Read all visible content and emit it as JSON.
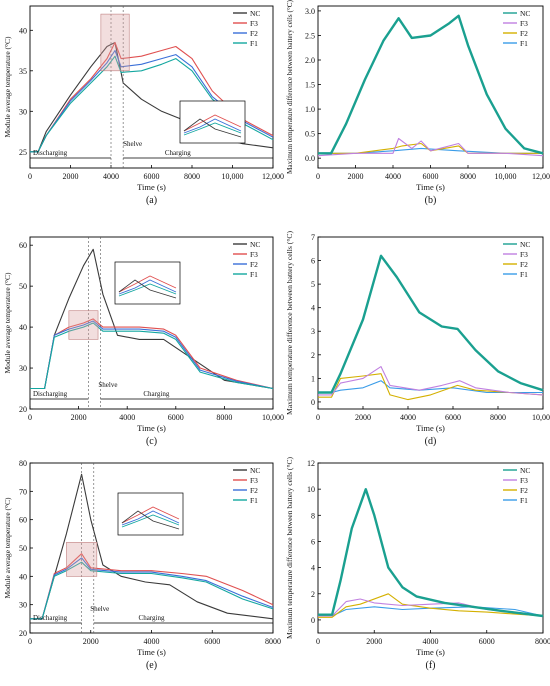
{
  "colors": {
    "NC": "#3a3a3a",
    "F3": "#e05050",
    "F2": "#3a6fd8",
    "F1": "#14a7a0"
  },
  "colors_right": {
    "NC": "#1aa090",
    "F3": "#c080e0",
    "F2": "#d4b000",
    "F1": "#3a9ce8"
  },
  "chart_data": [
    {
      "id": "a",
      "type": "line",
      "caption": "(a)",
      "xlabel": "Time (s)",
      "ylabel": "Module average temperature  (°C)",
      "xlim": [
        0,
        12000
      ],
      "ylim": [
        23,
        43
      ],
      "xticks": [
        0,
        2000,
        4000,
        6000,
        8000,
        10000,
        12000
      ],
      "xticklabels": [
        "0",
        "2000",
        "4000",
        "6000",
        "8000",
        "10,000",
        "12,000"
      ],
      "yticks": [
        25,
        30,
        35,
        40
      ],
      "annotations": [
        "Discharging",
        "Shelve",
        "Charging"
      ],
      "legend": [
        "NC",
        "F3",
        "F2",
        "F1"
      ],
      "series": [
        {
          "name": "NC",
          "x": [
            0,
            400,
            800,
            2000,
            3000,
            3800,
            4200,
            4600,
            5500,
            6500,
            7500,
            9000,
            10500,
            12000
          ],
          "y": [
            25,
            25,
            27.5,
            32,
            35.5,
            38,
            38.5,
            33.5,
            31.5,
            30,
            29,
            27,
            26,
            25.5
          ]
        },
        {
          "name": "F3",
          "x": [
            0,
            400,
            800,
            2000,
            3000,
            3800,
            4200,
            4500,
            5500,
            6500,
            7200,
            8000,
            9000,
            10500,
            12000
          ],
          "y": [
            25,
            25,
            27,
            31.5,
            34,
            36.5,
            38.5,
            36.5,
            36.8,
            37.5,
            38,
            36.5,
            32.5,
            29,
            27
          ]
        },
        {
          "name": "F2",
          "x": [
            0,
            400,
            800,
            2000,
            3000,
            3800,
            4200,
            4500,
            5500,
            6500,
            7200,
            8000,
            9000,
            10500,
            12000
          ],
          "y": [
            25,
            25,
            27,
            31.3,
            33.8,
            36,
            37.5,
            35.5,
            35.8,
            36.5,
            37,
            35.5,
            31.8,
            28.8,
            26.8
          ]
        },
        {
          "name": "F1",
          "x": [
            0,
            400,
            800,
            2000,
            3000,
            3800,
            4200,
            4500,
            5500,
            6500,
            7200,
            8000,
            9000,
            10500,
            12000
          ],
          "y": [
            25,
            25,
            27,
            31,
            33.5,
            35.5,
            36.8,
            34.8,
            35,
            35.8,
            36.5,
            35,
            31.5,
            28.5,
            26.5
          ]
        }
      ]
    },
    {
      "id": "b",
      "type": "line",
      "caption": "(b)",
      "xlabel": "Time (s)",
      "ylabel": "Maximum temperature difference between battery cells (°C)",
      "xlim": [
        0,
        12000
      ],
      "ylim": [
        -0.2,
        3.1
      ],
      "xticks": [
        0,
        2000,
        4000,
        6000,
        8000,
        10000,
        12000
      ],
      "xticklabels": [
        "0",
        "2000",
        "4000",
        "6000",
        "8000",
        "10,000",
        "12,000"
      ],
      "yticks": [
        0,
        0.5,
        1,
        1.5,
        2,
        2.5,
        3
      ],
      "yticklabels": [
        "0.0",
        "0.5",
        "1.0",
        "1.5",
        "2.0",
        "2.5",
        "3.0"
      ],
      "legend": [
        "NC",
        "F3",
        "F2",
        "F1"
      ],
      "series": [
        {
          "name": "NC",
          "x": [
            0,
            700,
            1500,
            2500,
            3500,
            4300,
            5000,
            6000,
            7000,
            7500,
            8000,
            9000,
            10000,
            11000,
            12000
          ],
          "y": [
            0.1,
            0.1,
            0.7,
            1.6,
            2.4,
            2.85,
            2.45,
            2.5,
            2.75,
            2.9,
            2.3,
            1.3,
            0.6,
            0.2,
            0.1
          ]
        },
        {
          "name": "F3",
          "x": [
            0,
            2000,
            4000,
            4300,
            5000,
            5500,
            6000,
            7500,
            8000,
            10000,
            12000
          ],
          "y": [
            0.05,
            0.1,
            0.1,
            0.4,
            0.2,
            0.35,
            0.15,
            0.3,
            0.1,
            0.1,
            0.05
          ]
        },
        {
          "name": "F2",
          "x": [
            0,
            2000,
            4000,
            4500,
            5500,
            6000,
            7500,
            8000,
            10000,
            12000
          ],
          "y": [
            0.1,
            0.1,
            0.2,
            0.25,
            0.3,
            0.15,
            0.25,
            0.1,
            0.1,
            0.1
          ]
        },
        {
          "name": "F1",
          "x": [
            0,
            2000,
            4000,
            5500,
            7500,
            10000,
            12000
          ],
          "y": [
            0.1,
            0.1,
            0.15,
            0.2,
            0.15,
            0.1,
            0.1
          ]
        }
      ]
    },
    {
      "id": "c",
      "type": "line",
      "caption": "(c)",
      "xlabel": "Time (s)",
      "ylabel": "Module average temperature (°C)",
      "xlim": [
        0,
        10000
      ],
      "ylim": [
        20,
        62
      ],
      "xticks": [
        0,
        2000,
        4000,
        6000,
        8000,
        10000
      ],
      "xticklabels": [
        "0",
        "2000",
        "4000",
        "6000",
        "8000",
        "10,000"
      ],
      "yticks": [
        20,
        30,
        40,
        50,
        60
      ],
      "annotations": [
        "Discharging",
        "Shelve",
        "Charging"
      ],
      "legend": [
        "NC",
        "F3",
        "F2",
        "F1"
      ],
      "series": [
        {
          "name": "NC",
          "x": [
            0,
            600,
            1000,
            1600,
            2200,
            2600,
            3000,
            3600,
            4500,
            5500,
            6500,
            8000,
            10000
          ],
          "y": [
            25,
            25,
            38,
            47,
            55,
            59,
            48,
            38,
            37,
            37,
            33,
            27,
            25
          ]
        },
        {
          "name": "F3",
          "x": [
            0,
            600,
            1000,
            1600,
            2200,
            2600,
            3000,
            3600,
            4500,
            5500,
            6000,
            7000,
            8500,
            10000
          ],
          "y": [
            25,
            25,
            38,
            40,
            41,
            42,
            40,
            40,
            40,
            39.5,
            38,
            30,
            27,
            25
          ]
        },
        {
          "name": "F2",
          "x": [
            0,
            600,
            1000,
            1600,
            2200,
            2600,
            3000,
            3600,
            4500,
            5500,
            6000,
            7000,
            8500,
            10000
          ],
          "y": [
            25,
            25,
            38,
            39.5,
            40.5,
            41.5,
            39.5,
            39.5,
            39.5,
            39,
            37.5,
            29.5,
            26.8,
            25
          ]
        },
        {
          "name": "F1",
          "x": [
            0,
            600,
            1000,
            1600,
            2200,
            2600,
            3000,
            3600,
            4500,
            5500,
            6000,
            7000,
            8500,
            10000
          ],
          "y": [
            25,
            25,
            37.5,
            39,
            40,
            41,
            39,
            39,
            39,
            38.5,
            37,
            29,
            26.5,
            25
          ]
        }
      ]
    },
    {
      "id": "d",
      "type": "line",
      "caption": "(d)",
      "xlabel": "Time (s)",
      "ylabel": "Maximum temperature difference between battery cells (°C)",
      "xlim": [
        0,
        10000
      ],
      "ylim": [
        -0.3,
        7
      ],
      "xticks": [
        0,
        2000,
        4000,
        6000,
        8000,
        10000
      ],
      "xticklabels": [
        "0",
        "2000",
        "4000",
        "6000",
        "8000",
        "10,000"
      ],
      "yticks": [
        0,
        1,
        2,
        3,
        4,
        5,
        6,
        7
      ],
      "legend": [
        "NC",
        "F3",
        "F2",
        "F1"
      ],
      "series": [
        {
          "name": "NC",
          "x": [
            0,
            600,
            1000,
            2000,
            2800,
            3500,
            4500,
            5500,
            6200,
            7000,
            8000,
            9000,
            10000
          ],
          "y": [
            0.4,
            0.4,
            1.2,
            3.5,
            6.2,
            5.3,
            3.8,
            3.2,
            3.1,
            2.2,
            1.3,
            0.8,
            0.5
          ]
        },
        {
          "name": "F3",
          "x": [
            0,
            600,
            1000,
            2000,
            2800,
            3200,
            4500,
            5500,
            6300,
            7000,
            8500,
            10000
          ],
          "y": [
            0.3,
            0.3,
            0.8,
            1,
            1.5,
            0.7,
            0.5,
            0.7,
            0.9,
            0.6,
            0.4,
            0.3
          ]
        },
        {
          "name": "F2",
          "x": [
            0,
            600,
            1000,
            2000,
            2800,
            3200,
            4000,
            5000,
            6200,
            7000,
            8500,
            10000
          ],
          "y": [
            0.2,
            0.2,
            1,
            1.1,
            1.2,
            0.3,
            0.1,
            0.3,
            0.7,
            0.5,
            0.4,
            0.3
          ]
        },
        {
          "name": "F1",
          "x": [
            0,
            600,
            1000,
            2000,
            2800,
            3200,
            4500,
            6000,
            7500,
            10000
          ],
          "y": [
            0.4,
            0.4,
            0.5,
            0.6,
            0.9,
            0.6,
            0.5,
            0.6,
            0.4,
            0.4
          ]
        }
      ]
    },
    {
      "id": "e",
      "type": "line",
      "caption": "(e)",
      "xlabel": "Time (s)",
      "ylabel": "Module average temperature (°C)",
      "xlim": [
        0,
        8000
      ],
      "ylim": [
        20,
        80
      ],
      "xticks": [
        0,
        2000,
        4000,
        6000,
        8000
      ],
      "yticks": [
        20,
        30,
        40,
        50,
        60,
        70,
        80
      ],
      "annotations": [
        "Discharging",
        "Shelve",
        "Charging"
      ],
      "legend": [
        "NC",
        "F3",
        "F2",
        "F1"
      ],
      "series": [
        {
          "name": "NC",
          "x": [
            0,
            400,
            800,
            1200,
            1700,
            2000,
            2400,
            3000,
            3800,
            4600,
            5500,
            6500,
            8000
          ],
          "y": [
            25,
            25,
            40,
            55,
            76,
            60,
            44,
            40,
            38,
            37,
            31,
            27,
            25
          ]
        },
        {
          "name": "F3",
          "x": [
            0,
            400,
            800,
            1200,
            1700,
            2000,
            3000,
            4000,
            5000,
            5800,
            7000,
            8000
          ],
          "y": [
            25,
            25,
            41,
            43,
            48,
            43,
            42,
            42,
            41,
            40,
            35,
            30
          ]
        },
        {
          "name": "F2",
          "x": [
            0,
            400,
            800,
            1200,
            1700,
            2000,
            3000,
            4000,
            5000,
            5800,
            7000,
            8000
          ],
          "y": [
            25,
            25,
            40.5,
            42.5,
            46.5,
            42.5,
            41.5,
            41.5,
            40,
            38.5,
            33,
            29
          ]
        },
        {
          "name": "F1",
          "x": [
            0,
            400,
            800,
            1200,
            1700,
            2000,
            3000,
            4000,
            5000,
            5800,
            7000,
            8000
          ],
          "y": [
            25,
            25,
            40,
            42,
            45,
            42,
            41,
            41,
            39.5,
            38,
            32,
            28.5
          ]
        }
      ]
    },
    {
      "id": "f",
      "type": "line",
      "caption": "(f)",
      "xlabel": "Time (s)",
      "ylabel": "Maximum temperature difference between battery cells (°C)",
      "xlim": [
        0,
        8000
      ],
      "ylim": [
        -1,
        12
      ],
      "xticks": [
        0,
        2000,
        4000,
        6000,
        8000
      ],
      "yticks": [
        0,
        2,
        4,
        6,
        8,
        10,
        12
      ],
      "legend": [
        "NC",
        "F3",
        "F2",
        "F1"
      ],
      "series": [
        {
          "name": "NC",
          "x": [
            0,
            500,
            800,
            1200,
            1700,
            2000,
            2500,
            3000,
            3500,
            4500,
            5500,
            6500,
            8000
          ],
          "y": [
            0.4,
            0.4,
            3,
            7,
            10,
            8,
            4,
            2.5,
            1.8,
            1.3,
            1,
            0.7,
            0.3
          ]
        },
        {
          "name": "F3",
          "x": [
            0,
            500,
            1000,
            1500,
            2000,
            3000,
            4000,
            5000,
            6000,
            8000
          ],
          "y": [
            0.3,
            0.3,
            1.4,
            1.6,
            1.3,
            1.1,
            1.2,
            1.3,
            0.8,
            0.3
          ]
        },
        {
          "name": "F2",
          "x": [
            0,
            500,
            1000,
            1500,
            2500,
            3000,
            4000,
            5000,
            6000,
            8000
          ],
          "y": [
            0.2,
            0.2,
            1,
            1.2,
            2,
            1.2,
            0.9,
            0.7,
            0.6,
            0.3
          ]
        },
        {
          "name": "F1",
          "x": [
            0,
            500,
            1000,
            2000,
            3000,
            4000,
            5500,
            7000,
            8000
          ],
          "y": [
            0.3,
            0.3,
            0.8,
            1,
            0.8,
            0.9,
            1,
            0.8,
            0.3
          ]
        }
      ]
    }
  ]
}
